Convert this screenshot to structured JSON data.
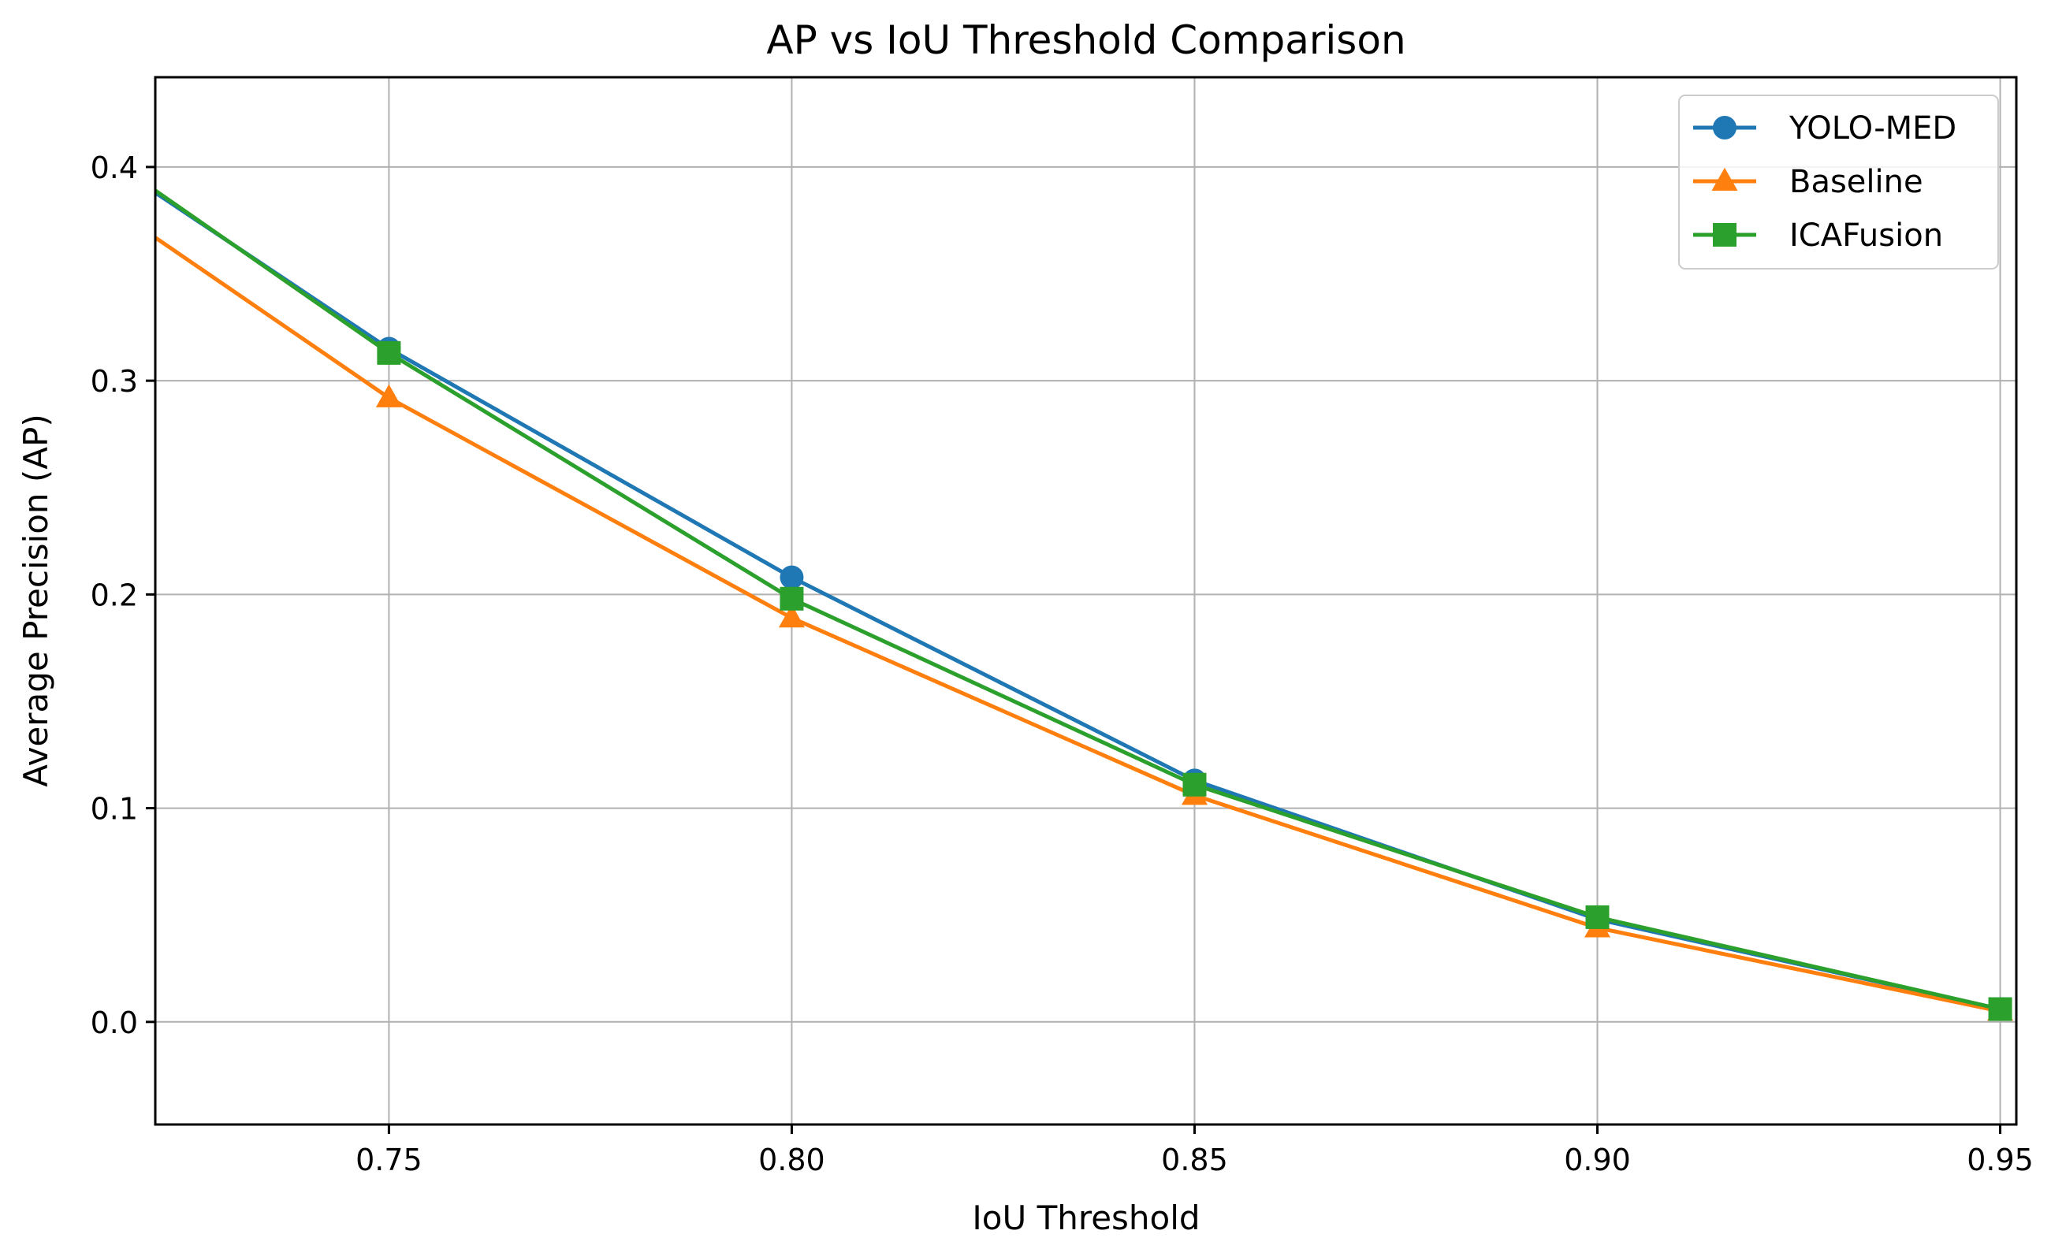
{
  "chart_data": {
    "type": "line",
    "title": "AP vs IoU Threshold Comparison",
    "xlabel": "IoU Threshold",
    "ylabel": "Average Precision (AP)",
    "x": [
      0.75,
      0.8,
      0.85,
      0.9,
      0.95
    ],
    "x_extension_left": 0.721,
    "xlim": [
      0.721,
      0.952
    ],
    "ylim": [
      -0.048,
      0.442
    ],
    "xticks": [
      0.75,
      0.8,
      0.85,
      0.9,
      0.95
    ],
    "xtick_labels": [
      "0.75",
      "0.80",
      "0.85",
      "0.90",
      "0.95"
    ],
    "yticks": [
      0.0,
      0.1,
      0.2,
      0.3,
      0.4
    ],
    "ytick_labels": [
      "0.0",
      "0.1",
      "0.2",
      "0.3",
      "0.4"
    ],
    "grid": true,
    "legend_position": "top-right",
    "series": [
      {
        "name": "YOLO-MED",
        "color": "#1f77b4",
        "marker": "circle",
        "start_value": 0.388,
        "values": [
          0.315,
          0.208,
          0.113,
          0.048,
          0.006
        ]
      },
      {
        "name": "Baseline",
        "color": "#ff7f0e",
        "marker": "triangle",
        "start_value": 0.367,
        "values": [
          0.292,
          0.189,
          0.106,
          0.044,
          0.005
        ]
      },
      {
        "name": "ICAFusion",
        "color": "#2ca02c",
        "marker": "square",
        "start_value": 0.389,
        "values": [
          0.313,
          0.198,
          0.111,
          0.049,
          0.006
        ]
      }
    ]
  }
}
